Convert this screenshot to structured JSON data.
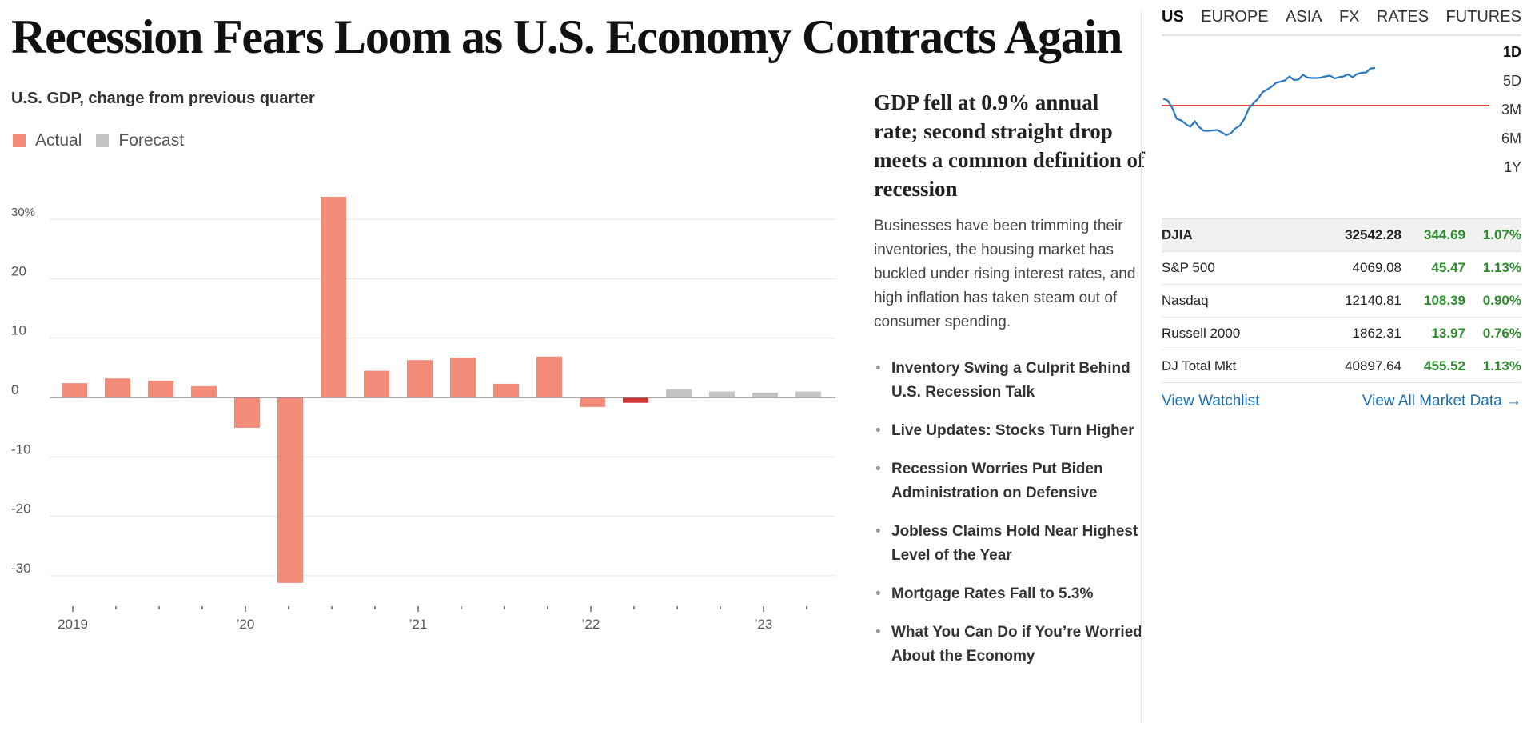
{
  "headline": "Recession Fears Loom as U.S. Economy Contracts Again",
  "chart": {
    "title": "U.S. GDP, change from previous quarter",
    "legend": {
      "actual": "Actual",
      "forecast": "Forecast"
    },
    "colors": {
      "actual": "#f28b78",
      "latest": "#cc3333",
      "forecast": "#c4c4c4"
    }
  },
  "chart_data": {
    "type": "bar",
    "title": "U.S. GDP, change from previous quarter",
    "ylim": [
      -35,
      35
    ],
    "yticks": [
      30,
      20,
      10,
      0,
      -10,
      -20,
      -30
    ],
    "ytick_labels": [
      "30%",
      "20",
      "10",
      "0",
      "-10",
      "-20",
      "-30"
    ],
    "xtick_labels": [
      "2019",
      "’20",
      "’21",
      "’22",
      "’23"
    ],
    "grid": true,
    "legend_position": "top-left",
    "series": [
      {
        "name": "Actual",
        "x": [
          "2019 Q1",
          "2019 Q2",
          "2019 Q3",
          "2019 Q4",
          "2020 Q1",
          "2020 Q2",
          "2020 Q3",
          "2020 Q4",
          "2021 Q1",
          "2021 Q2",
          "2021 Q3",
          "2021 Q4",
          "2022 Q1",
          "2022 Q2"
        ],
        "values": [
          2.4,
          3.2,
          2.8,
          1.9,
          -5.1,
          -31.2,
          33.8,
          4.5,
          6.3,
          6.7,
          2.3,
          6.9,
          -1.6,
          -0.9
        ]
      },
      {
        "name": "Forecast",
        "x": [
          "2022 Q3",
          "2022 Q4",
          "2023 Q1",
          "2023 Q2"
        ],
        "values": [
          1.4,
          1.0,
          0.8,
          1.0
        ]
      }
    ]
  },
  "story": {
    "headline": "GDP fell at 0.9% annual rate; second straight drop meets a common definition of recession",
    "summary": "Businesses have been trimming their inventories, the housing market has buckled under rising interest rates, and high inflation has taken steam out of consumer spending.",
    "bullet": "•",
    "related": [
      "Inventory Swing a Culprit Behind U.S. Recession Talk",
      "Live Updates: Stocks Turn Higher",
      "Recession Worries Put Biden Administration on Defensive",
      "Jobless Claims Hold Near Highest Level of the Year",
      "Mortgage Rates Fall to 5.3%",
      "What You Can Do if You’re Worried About the Economy"
    ]
  },
  "market": {
    "tabs": [
      "US",
      "EUROPE",
      "ASIA",
      "FX",
      "RATES",
      "FUTURES"
    ],
    "active_tab": "US",
    "ranges": [
      "1D",
      "5D",
      "3M",
      "6M",
      "1Y"
    ],
    "active_range": "1D",
    "sparkline": {
      "line_color": "#2a78c2",
      "baseline_color": "#e04444",
      "baseline_level": 0.45,
      "levels": [
        0.55,
        0.5,
        0.42,
        0.3,
        0.25,
        0.22,
        0.2,
        0.24,
        0.18,
        0.15,
        0.12,
        0.14,
        0.16,
        0.1,
        0.08,
        0.12,
        0.15,
        0.2,
        0.3,
        0.4,
        0.48,
        0.55,
        0.6,
        0.65,
        0.7,
        0.72,
        0.75,
        0.78,
        0.8,
        0.77,
        0.79,
        0.82,
        0.8,
        0.81,
        0.78,
        0.8,
        0.83,
        0.81,
        0.79,
        0.82,
        0.8,
        0.84,
        0.82,
        0.83,
        0.86,
        0.88,
        0.9,
        0.92
      ]
    },
    "quotes": [
      {
        "name": "DJIA",
        "last": "32542.28",
        "chg": "344.69",
        "pct": "1.07%"
      },
      {
        "name": "S&P 500",
        "last": "4069.08",
        "chg": "45.47",
        "pct": "1.13%"
      },
      {
        "name": "Nasdaq",
        "last": "12140.81",
        "chg": "108.39",
        "pct": "0.90%"
      },
      {
        "name": "Russell 2000",
        "last": "1862.31",
        "chg": "13.97",
        "pct": "0.76%"
      },
      {
        "name": "DJ Total Mkt",
        "last": "40897.64",
        "chg": "455.52",
        "pct": "1.13%"
      }
    ],
    "links": {
      "watchlist": "View Watchlist",
      "all_data": "View All Market Data →"
    }
  }
}
